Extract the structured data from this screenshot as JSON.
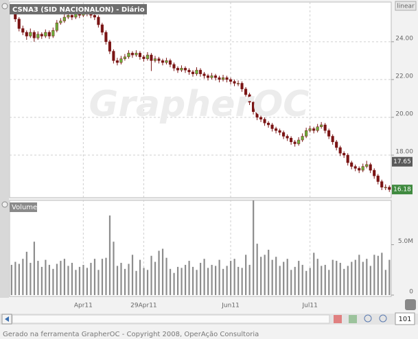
{
  "chart_data": [
    {
      "type": "candlestick",
      "title": "CSNA3 (SID NACIONALON) - Diário",
      "scale_label": "linear",
      "watermark": "GrapherOC",
      "up_color": "#6bb03a",
      "down_color": "#7a1414",
      "grid": true,
      "ylim": [
        15.75,
        26.1
      ],
      "yticks": [
        {
          "value": 18,
          "label": "18.00"
        },
        {
          "value": 20,
          "label": "20.00"
        },
        {
          "value": 22,
          "label": "22.00"
        },
        {
          "value": 24,
          "label": "24.00"
        }
      ],
      "price_markers": [
        {
          "value": 17.65,
          "label": "17.65",
          "color": "#5a5a5a"
        },
        {
          "value": 16.18,
          "label": "16.18",
          "color": "#3f8a3f"
        }
      ],
      "categories": [
        null,
        null,
        null,
        null,
        null,
        null,
        null,
        null,
        null,
        null,
        null,
        null,
        null,
        null,
        null,
        null,
        null,
        null,
        null,
        "Apr11",
        null,
        null,
        null,
        null,
        null,
        null,
        null,
        null,
        null,
        null,
        null,
        null,
        null,
        null,
        null,
        "29Apr11",
        null,
        null,
        null,
        null,
        null,
        null,
        null,
        null,
        null,
        null,
        null,
        null,
        null,
        null,
        null,
        null,
        null,
        null,
        null,
        null,
        null,
        null,
        "Jun11",
        null,
        null,
        null,
        null,
        null,
        null,
        null,
        null,
        null,
        null,
        null,
        null,
        null,
        null,
        null,
        null,
        null,
        null,
        null,
        null,
        "Jul11",
        null,
        null,
        null,
        null,
        null,
        null,
        null,
        null,
        null,
        null,
        null,
        null,
        null,
        null,
        null,
        null,
        null,
        null,
        null,
        null,
        null
      ],
      "ohlc": [
        [
          25.7,
          25.85,
          25.45,
          25.6
        ],
        [
          25.6,
          25.7,
          25.05,
          25.2
        ],
        [
          25.2,
          25.3,
          24.55,
          24.7
        ],
        [
          24.7,
          24.85,
          24.35,
          24.5
        ],
        [
          24.5,
          24.6,
          24.1,
          24.3
        ],
        [
          24.3,
          24.7,
          24.2,
          24.5
        ],
        [
          24.5,
          24.6,
          24.0,
          24.2
        ],
        [
          24.2,
          24.55,
          24.1,
          24.4
        ],
        [
          24.4,
          24.5,
          24.15,
          24.3
        ],
        [
          24.3,
          24.65,
          24.2,
          24.5
        ],
        [
          24.5,
          24.6,
          24.15,
          24.3
        ],
        [
          24.3,
          24.75,
          24.2,
          24.6
        ],
        [
          24.6,
          25.15,
          24.5,
          25.0
        ],
        [
          25.0,
          25.25,
          24.9,
          25.1
        ],
        [
          25.1,
          25.45,
          25.0,
          25.3
        ],
        [
          25.3,
          25.55,
          25.2,
          25.4
        ],
        [
          25.4,
          25.5,
          25.15,
          25.3
        ],
        [
          25.3,
          25.65,
          25.2,
          25.5
        ],
        [
          25.5,
          25.6,
          25.25,
          25.4
        ],
        [
          25.4,
          25.75,
          25.3,
          25.6
        ],
        [
          25.6,
          25.7,
          25.35,
          25.5
        ],
        [
          25.5,
          25.6,
          25.25,
          25.4
        ],
        [
          25.4,
          25.5,
          25.15,
          25.3
        ],
        [
          25.3,
          25.4,
          24.75,
          24.9
        ],
        [
          24.9,
          25.0,
          24.35,
          24.5
        ],
        [
          24.5,
          24.6,
          23.85,
          24.0
        ],
        [
          24.0,
          24.1,
          23.35,
          23.5
        ],
        [
          23.5,
          23.6,
          22.85,
          23.0
        ],
        [
          23.0,
          23.15,
          22.75,
          22.9
        ],
        [
          22.9,
          23.25,
          22.8,
          23.1
        ],
        [
          23.1,
          23.35,
          23.0,
          23.2
        ],
        [
          23.2,
          23.55,
          23.1,
          23.4
        ],
        [
          23.4,
          23.5,
          23.15,
          23.3
        ],
        [
          23.3,
          23.55,
          23.2,
          23.4
        ],
        [
          23.4,
          23.5,
          23.05,
          23.2
        ],
        [
          23.2,
          23.3,
          22.95,
          23.1
        ],
        [
          23.1,
          23.45,
          23.0,
          23.3
        ],
        [
          23.3,
          23.4,
          22.45,
          23.0
        ],
        [
          23.0,
          23.25,
          22.9,
          23.1
        ],
        [
          23.1,
          23.2,
          22.85,
          23.0
        ],
        [
          23.0,
          23.1,
          22.75,
          22.9
        ],
        [
          22.9,
          23.15,
          22.8,
          23.0
        ],
        [
          23.0,
          23.1,
          22.65,
          22.8
        ],
        [
          22.8,
          22.9,
          22.45,
          22.6
        ],
        [
          22.6,
          22.7,
          22.35,
          22.5
        ],
        [
          22.5,
          22.75,
          22.4,
          22.6
        ],
        [
          22.6,
          22.7,
          22.35,
          22.5
        ],
        [
          22.5,
          22.6,
          22.25,
          22.4
        ],
        [
          22.4,
          22.5,
          22.15,
          22.3
        ],
        [
          22.3,
          22.65,
          22.2,
          22.5
        ],
        [
          22.5,
          22.6,
          22.15,
          22.3
        ],
        [
          22.3,
          22.4,
          22.05,
          22.2
        ],
        [
          22.2,
          22.3,
          21.95,
          22.1
        ],
        [
          22.1,
          22.35,
          22.0,
          22.2
        ],
        [
          22.2,
          22.3,
          21.95,
          22.1
        ],
        [
          22.1,
          22.2,
          21.85,
          22.0
        ],
        [
          22.0,
          22.25,
          21.9,
          22.1
        ],
        [
          22.1,
          22.2,
          21.85,
          22.0
        ],
        [
          22.0,
          22.1,
          21.75,
          21.9
        ],
        [
          21.9,
          22.0,
          21.65,
          21.8
        ],
        [
          21.8,
          21.95,
          21.65,
          21.8
        ],
        [
          21.8,
          21.9,
          21.35,
          21.5
        ],
        [
          21.5,
          21.6,
          21.05,
          21.2
        ],
        [
          21.2,
          21.3,
          20.65,
          20.8
        ],
        [
          20.8,
          20.9,
          20.15,
          20.3
        ],
        [
          20.3,
          20.4,
          19.85,
          20.0
        ],
        [
          20.0,
          20.1,
          19.75,
          19.9
        ],
        [
          19.9,
          20.0,
          19.55,
          19.7
        ],
        [
          19.7,
          19.8,
          19.45,
          19.6
        ],
        [
          19.6,
          19.7,
          19.25,
          19.4
        ],
        [
          19.4,
          19.5,
          19.15,
          19.3
        ],
        [
          19.3,
          19.4,
          19.05,
          19.2
        ],
        [
          19.2,
          19.3,
          18.85,
          19.0
        ],
        [
          19.0,
          19.1,
          18.75,
          18.9
        ],
        [
          18.9,
          19.0,
          18.55,
          18.7
        ],
        [
          18.7,
          18.8,
          18.45,
          18.6
        ],
        [
          18.6,
          18.95,
          18.5,
          18.8
        ],
        [
          18.8,
          19.15,
          18.7,
          19.0
        ],
        [
          19.0,
          19.45,
          18.9,
          19.3
        ],
        [
          19.3,
          19.55,
          19.2,
          19.4
        ],
        [
          19.4,
          19.5,
          19.15,
          19.3
        ],
        [
          19.3,
          19.65,
          19.2,
          19.5
        ],
        [
          19.5,
          19.75,
          19.4,
          19.6
        ],
        [
          19.6,
          19.7,
          19.15,
          19.3
        ],
        [
          19.3,
          19.4,
          18.85,
          19.0
        ],
        [
          19.0,
          19.1,
          18.55,
          18.7
        ],
        [
          18.7,
          18.8,
          18.25,
          18.4
        ],
        [
          18.4,
          18.5,
          17.95,
          18.1
        ],
        [
          18.1,
          18.2,
          17.85,
          18.0
        ],
        [
          18.0,
          18.1,
          17.45,
          17.6
        ],
        [
          17.6,
          17.7,
          17.25,
          17.4
        ],
        [
          17.4,
          17.5,
          17.15,
          17.3
        ],
        [
          17.3,
          17.4,
          17.05,
          17.2
        ],
        [
          17.2,
          17.55,
          17.1,
          17.4
        ],
        [
          17.4,
          17.7,
          17.3,
          17.5
        ],
        [
          17.5,
          17.6,
          17.05,
          17.2
        ],
        [
          17.2,
          17.3,
          16.75,
          16.9
        ],
        [
          16.9,
          17.0,
          16.45,
          16.6
        ],
        [
          16.6,
          16.7,
          16.15,
          16.3
        ],
        [
          16.3,
          16.45,
          16.15,
          16.3
        ],
        [
          16.3,
          16.4,
          16.05,
          16.18
        ]
      ]
    },
    {
      "type": "bar",
      "title": "Volume",
      "color": "#8c8c8c",
      "ylim": [
        0,
        9.4
      ],
      "yticks": [
        0,
        {
          "value": 5,
          "label": "5.0M"
        }
      ],
      "values": [
        3.0,
        3.3,
        3.1,
        3.6,
        4.3,
        3.2,
        5.3,
        3.4,
        2.8,
        3.5,
        3.0,
        2.6,
        3.1,
        3.4,
        3.6,
        2.9,
        3.2,
        2.5,
        2.8,
        3.0,
        2.7,
        3.2,
        3.6,
        2.5,
        3.6,
        3.7,
        7.9,
        5.3,
        2.9,
        3.2,
        2.6,
        3.1,
        4.0,
        2.4,
        3.5,
        2.7,
        2.5,
        3.9,
        3.3,
        4.4,
        4.6,
        3.7,
        2.6,
        2.2,
        2.8,
        2.7,
        3.0,
        3.4,
        2.8,
        2.5,
        3.2,
        3.6,
        2.7,
        3.0,
        2.9,
        3.5,
        2.6,
        2.9,
        3.4,
        3.6,
        2.8,
        2.7,
        4.0,
        3.0,
        9.4,
        5.1,
        3.8,
        4.0,
        4.5,
        3.5,
        3.8,
        2.9,
        3.3,
        3.6,
        2.5,
        2.8,
        3.4,
        3.0,
        2.4,
        2.7,
        4.2,
        3.6,
        2.9,
        3.0,
        2.5,
        3.5,
        3.4,
        3.2,
        2.6,
        2.9,
        3.3,
        3.5,
        4.0,
        3.3,
        3.6,
        2.9,
        4.0,
        3.9,
        4.2,
        2.5,
        3.5
      ]
    }
  ],
  "zoom_value": "101",
  "footer": "Gerado na ferramenta GrapherOC - Copyright 2008, OperAção Consultoria"
}
